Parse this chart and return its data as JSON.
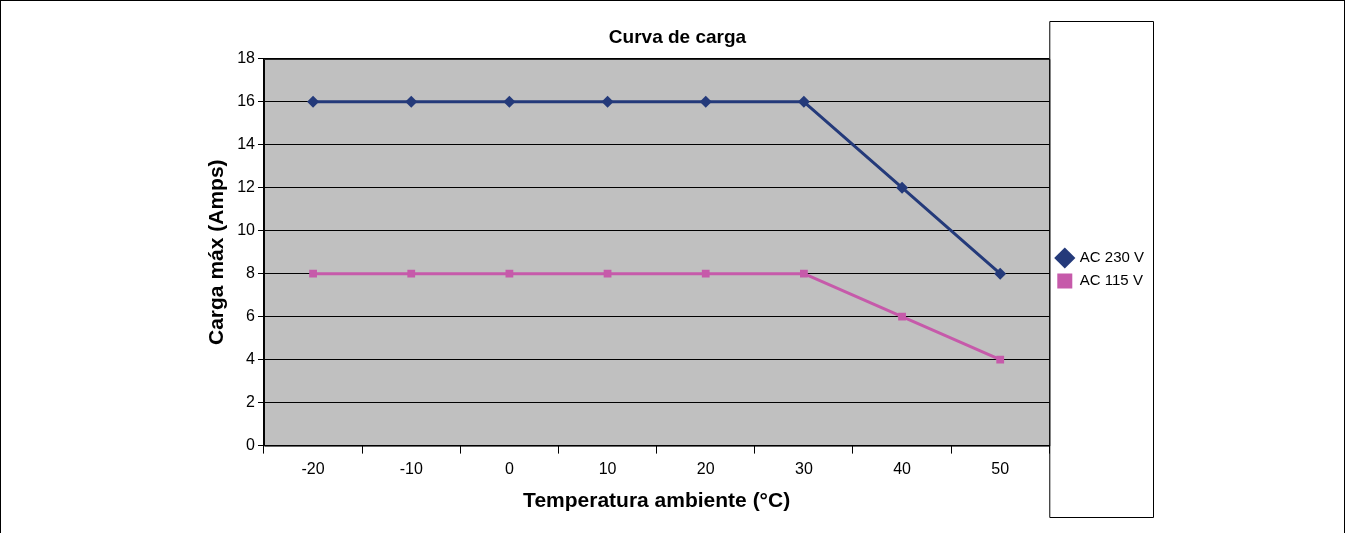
{
  "chart_data": {
    "type": "line",
    "title": "Curva de carga",
    "xlabel": "Temperatura ambiente (°C)",
    "ylabel": "Carga máx (Amps)",
    "categories": [
      "-20",
      "-10",
      "0",
      "10",
      "20",
      "30",
      "40",
      "50"
    ],
    "series": [
      {
        "name": "AC 230 V",
        "color": "#243a7a",
        "marker": "diamond",
        "values": [
          16,
          16,
          16,
          16,
          16,
          16,
          12,
          8
        ]
      },
      {
        "name": "AC 115 V",
        "color": "#c65aaa",
        "marker": "square",
        "values": [
          8,
          8,
          8,
          8,
          8,
          8,
          6,
          4
        ]
      }
    ],
    "ylim": [
      0,
      18
    ],
    "yticks": [
      0,
      2,
      4,
      6,
      8,
      10,
      12,
      14,
      16,
      18
    ],
    "grid": "y",
    "legend": "right",
    "line_style": "solid"
  }
}
